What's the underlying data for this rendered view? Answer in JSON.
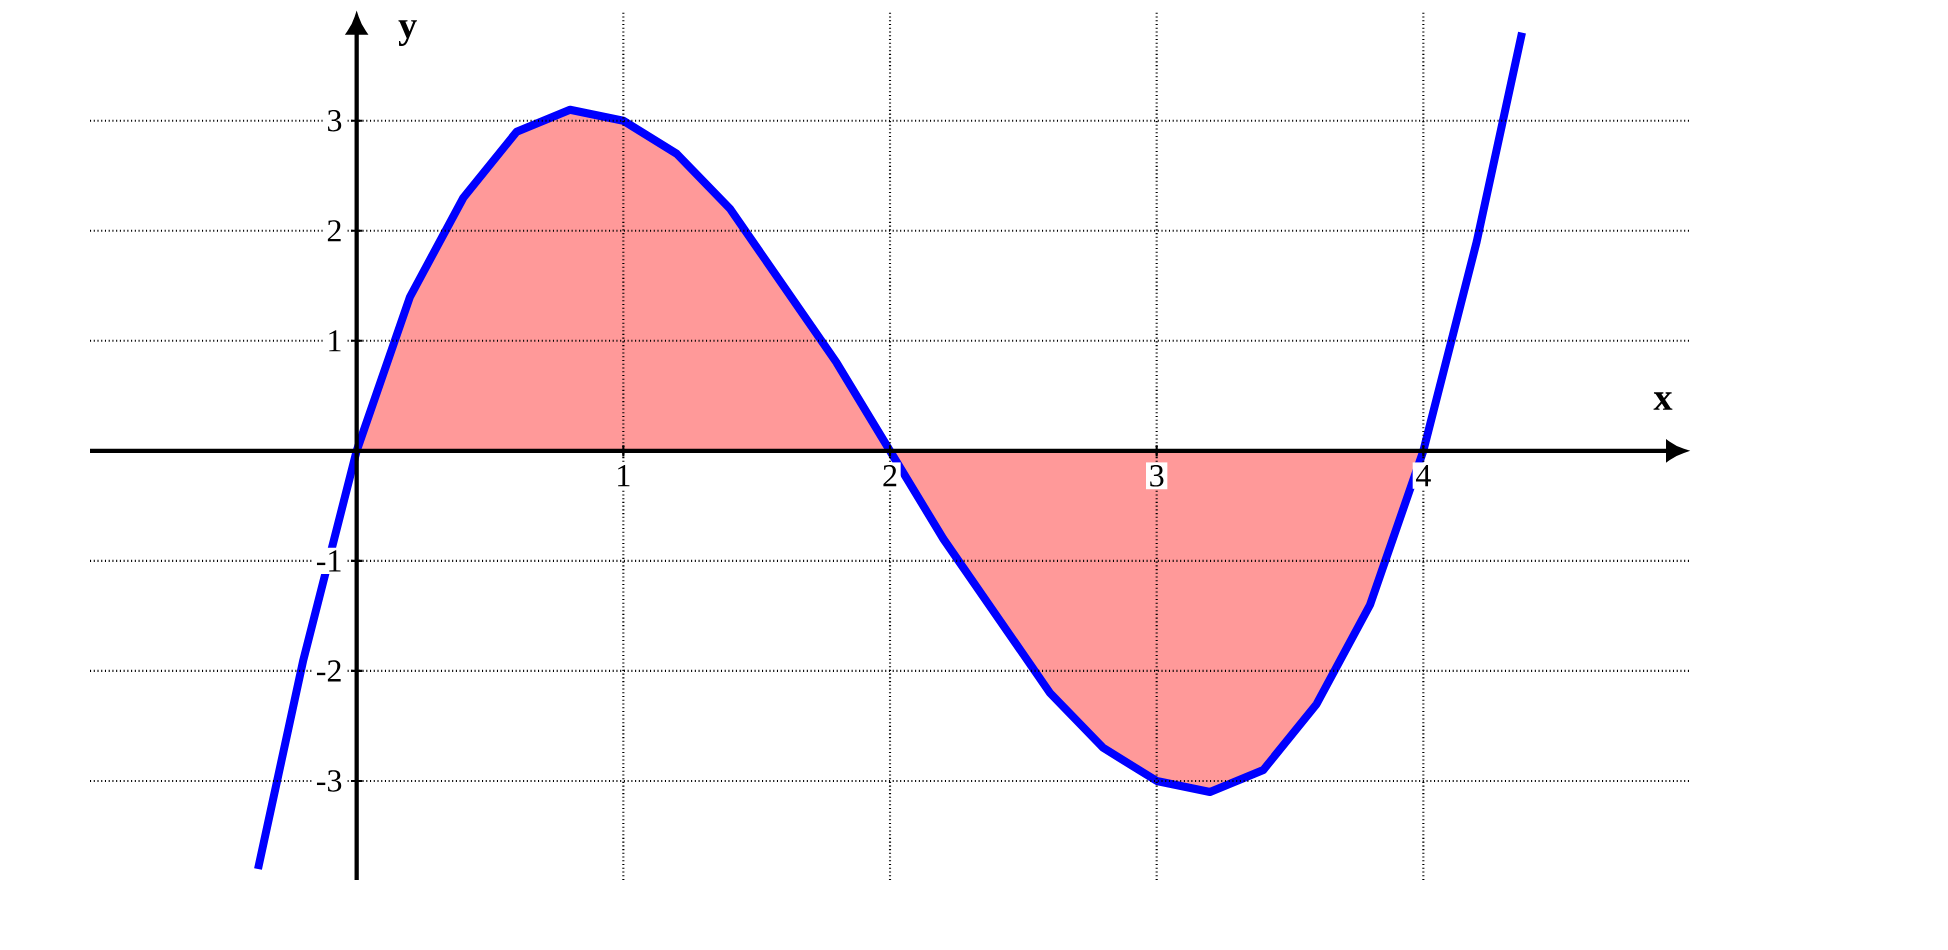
{
  "chart_data": {
    "type": "line",
    "xlabel": "x",
    "ylabel": "y",
    "xlim": [
      -1,
      5
    ],
    "ylim": [
      -3.9,
      4
    ],
    "xticks": [
      1,
      2,
      3,
      4
    ],
    "yticks": [
      -3,
      -2,
      -1,
      1,
      2,
      3
    ],
    "grid": true,
    "series": [
      {
        "type": "area",
        "color": "#ff9999",
        "x": [
          0,
          0.2,
          0.4,
          0.6,
          0.8,
          1.0,
          1.2,
          1.4,
          1.6,
          1.8,
          2.0,
          2.2,
          2.4,
          2.6,
          2.8,
          3.0,
          3.2,
          3.4,
          3.6,
          3.8,
          4.0
        ],
        "values": [
          0,
          1.4,
          2.3,
          2.9,
          3.1,
          3.0,
          2.7,
          2.2,
          1.5,
          0.8,
          0,
          -0.8,
          -1.5,
          -2.2,
          -2.7,
          -3.0,
          -3.1,
          -2.9,
          -2.3,
          -1.4,
          0
        ]
      },
      {
        "color": "#0000ff",
        "x": [
          -0.37,
          -0.2,
          0,
          0.2,
          0.4,
          0.6,
          0.8,
          1.0,
          1.2,
          1.4,
          1.6,
          1.8,
          2.0,
          2.2,
          2.4,
          2.6,
          2.8,
          3.0,
          3.2,
          3.4,
          3.6,
          3.8,
          4.0,
          4.2,
          4.37
        ],
        "values": [
          -3.8,
          -1.9,
          0,
          1.4,
          2.3,
          2.9,
          3.1,
          3.0,
          2.7,
          2.2,
          1.5,
          0.8,
          0,
          -0.8,
          -1.5,
          -2.2,
          -2.7,
          -3.0,
          -3.1,
          -2.9,
          -2.3,
          -1.4,
          0,
          1.9,
          3.8
        ]
      }
    ]
  }
}
